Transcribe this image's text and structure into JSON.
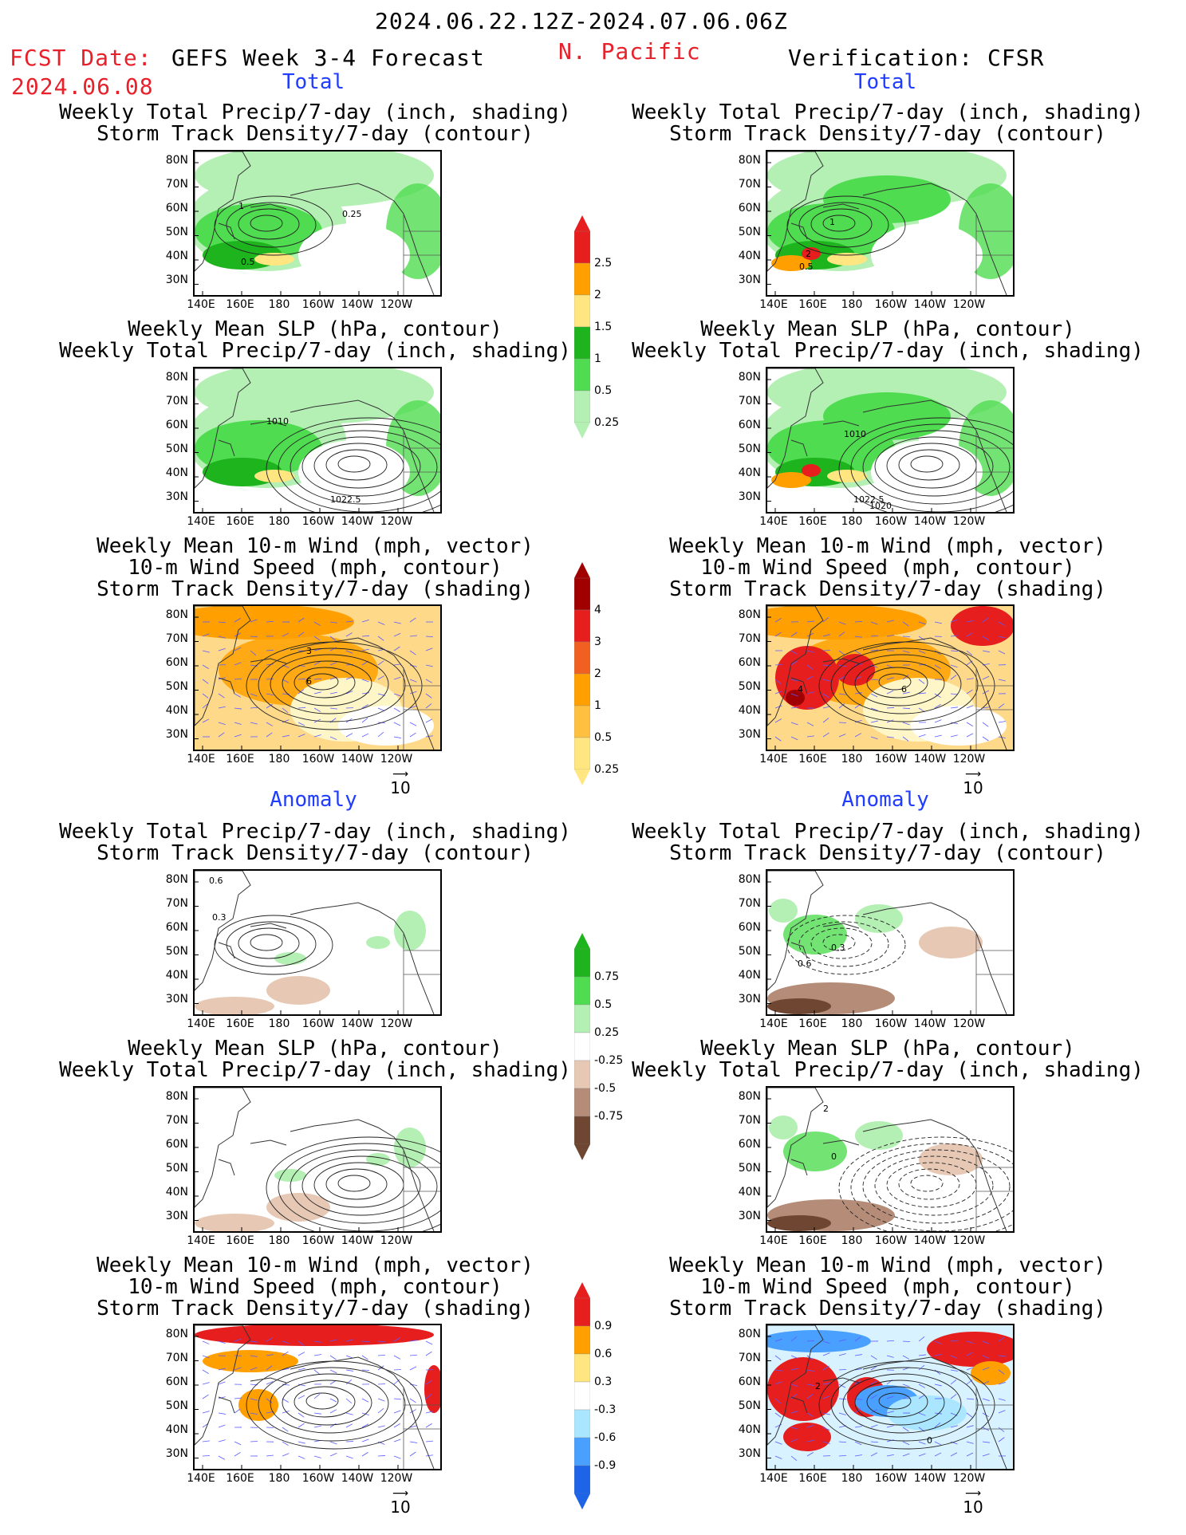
{
  "header": {
    "date_range": "2024.06.22.12Z-2024.07.06.06Z",
    "fcst_label": "FCST Date:",
    "fcst_date": "2024.06.08",
    "model": "GEFS Week 3-4 Forecast",
    "region": "N. Pacific",
    "verification": "Verification: CFSR"
  },
  "sections": {
    "total": "Total",
    "anomaly": "Anomaly"
  },
  "titles": {
    "precip_storm": [
      "Weekly Total Precip/7-day (inch, shading)",
      "Storm Track Density/7-day (contour)"
    ],
    "slp_precip": [
      "Weekly Mean SLP (hPa, contour)",
      "Weekly Total Precip/7-day (inch, shading)"
    ],
    "wind_storm": [
      "Weekly Mean 10-m Wind (mph, vector)",
      "10-m Wind Speed (mph, contour)",
      "Storm Track Density/7-day (shading)"
    ]
  },
  "axes": {
    "lat": [
      "80N",
      "70N",
      "60N",
      "50N",
      "40N",
      "30N"
    ],
    "lon": [
      "140E",
      "160E",
      "180",
      "160W",
      "140W",
      "120W"
    ]
  },
  "contour_labels": {
    "p1": [
      "1",
      "0.25",
      "0.5"
    ],
    "p2": [
      "1010",
      "1022.5"
    ],
    "p3": [
      "3",
      "6"
    ],
    "p4": [
      "0.6",
      "0.3"
    ],
    "p7": [
      "1",
      "2",
      "0.5"
    ],
    "p8": [
      "1010",
      "1022.5",
      "1020"
    ],
    "p9": [
      "4",
      "6"
    ],
    "p10": [
      "0.3",
      "0.6"
    ],
    "p11": [
      "2",
      "0"
    ],
    "p12": [
      "2",
      "0"
    ]
  },
  "colorbars": {
    "precip_total": [
      "2.5",
      "2",
      "1.5",
      "1",
      "0.5",
      "0.25"
    ],
    "storm_total": [
      "4",
      "3",
      "2",
      "1",
      "0.5",
      "0.25"
    ],
    "precip_anom": [
      "0.75",
      "0.5",
      "0.25",
      "-0.25",
      "-0.5",
      "-0.75"
    ],
    "storm_anom": [
      "0.9",
      "0.6",
      "0.3",
      "-0.3",
      "-0.6",
      "-0.9"
    ]
  },
  "vector_ref": "10",
  "colors": {
    "green_light": "#b4f0b4",
    "green_mid": "#50dc50",
    "green_dark": "#1eb41e",
    "yellow": "#ffe680",
    "orange": "#ffa000",
    "red": "#e61e1e",
    "darkred": "#a00000",
    "brown_light": "#e6c8b4",
    "brown_mid": "#b48c78",
    "brown_dark": "#6e4632",
    "blue_light": "#aae6ff",
    "blue_mid": "#4aa0ff",
    "blue_dark": "#1e64e6"
  }
}
